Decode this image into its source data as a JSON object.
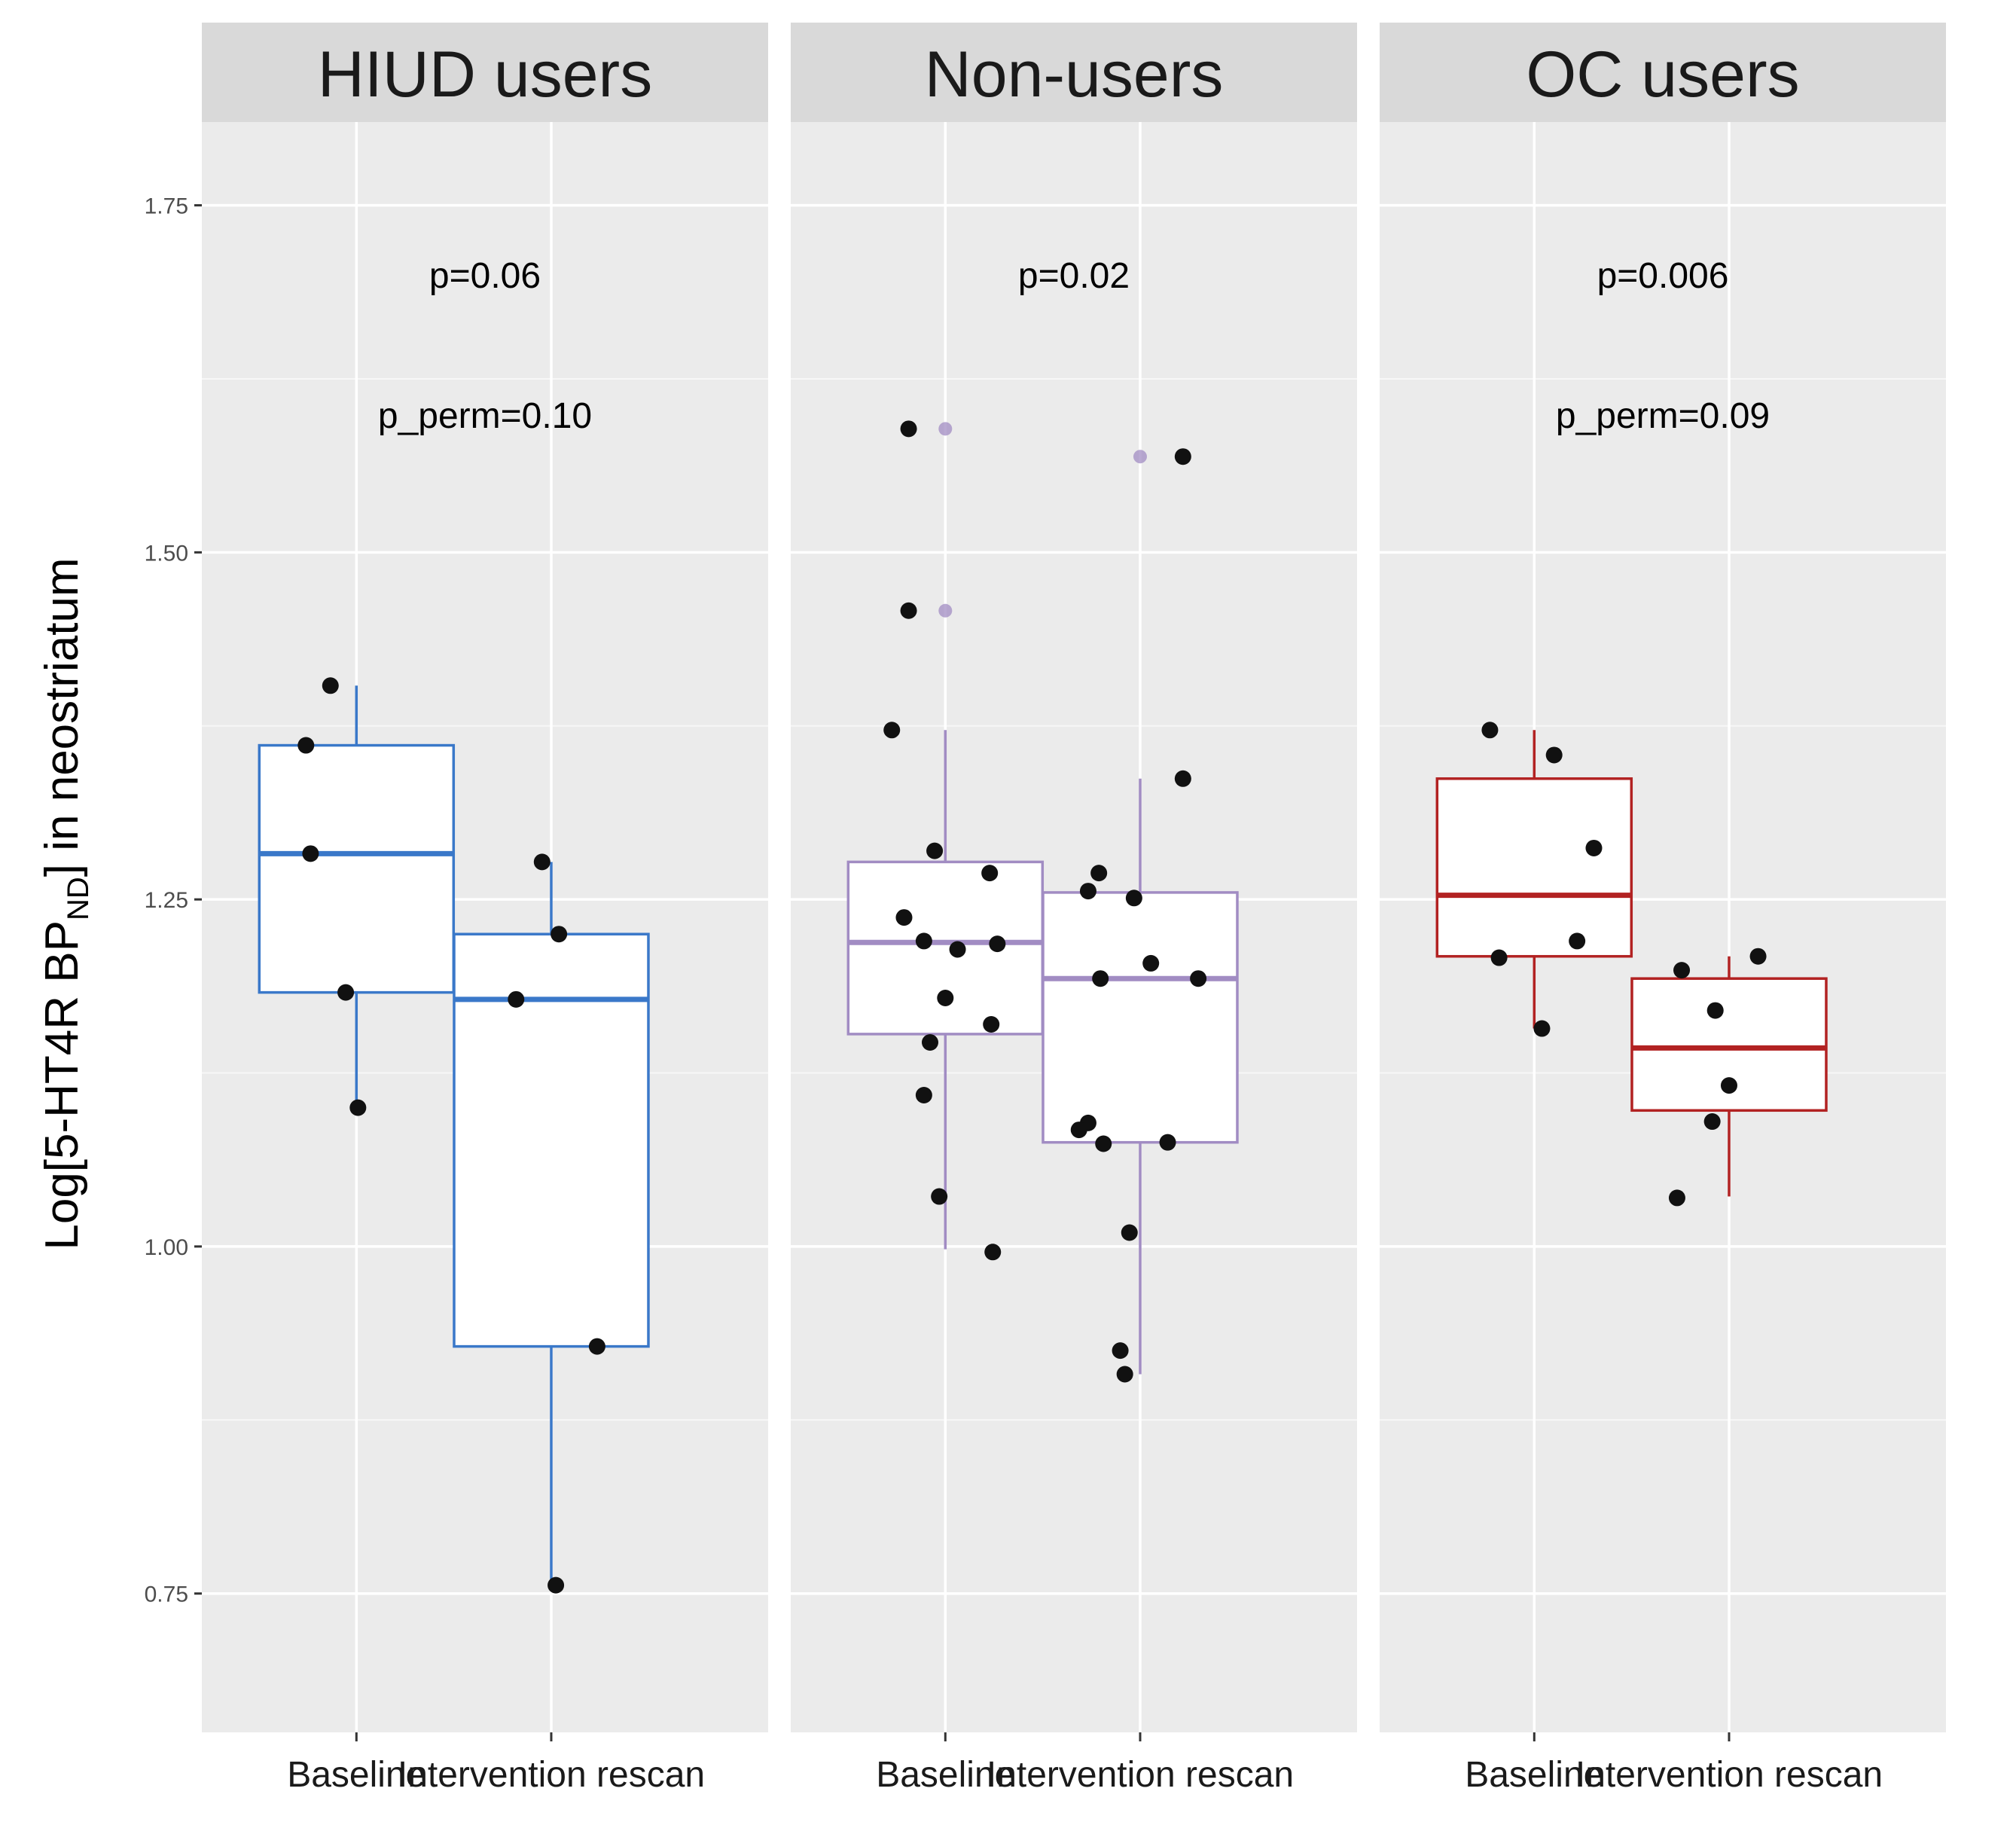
{
  "chart_data": {
    "type": "boxplot",
    "ylabel": {
      "prefix": "Log[5-HT4R BP",
      "subscript": "ND",
      "suffix": "] in neostriatum"
    },
    "ylim": [
      0.65,
      1.81
    ],
    "yticks": [
      0.75,
      1.0,
      1.25,
      1.5,
      1.75
    ],
    "ytick_labels": [
      "0.75",
      "1.00",
      "1.25",
      "1.50",
      "1.75"
    ],
    "categories": [
      "Baseline",
      "Intervention rescan"
    ],
    "panels": [
      {
        "name": "HIUD users",
        "color": "#3a78c9",
        "annotations": [
          "p=0.06",
          "p_perm=0.10"
        ],
        "boxes": [
          {
            "category": "Baseline",
            "whisker_low": 1.1,
            "q1": 1.183,
            "median": 1.283,
            "q3": 1.361,
            "whisker_high": 1.404,
            "outliers": []
          },
          {
            "category": "Intervention rescan",
            "whisker_low": 0.756,
            "q1": 0.928,
            "median": 1.178,
            "q3": 1.225,
            "whisker_high": 1.277,
            "outliers": []
          }
        ],
        "points": [
          {
            "category": "Baseline",
            "jitter": -0.33,
            "y": 1.361
          },
          {
            "category": "Baseline",
            "jitter": -0.3,
            "y": 1.283
          },
          {
            "category": "Baseline",
            "jitter": -0.17,
            "y": 1.404
          },
          {
            "category": "Baseline",
            "jitter": -0.07,
            "y": 1.183
          },
          {
            "category": "Baseline",
            "jitter": 0.01,
            "y": 1.1
          },
          {
            "category": "Intervention rescan",
            "jitter": -0.23,
            "y": 1.178
          },
          {
            "category": "Intervention rescan",
            "jitter": -0.06,
            "y": 1.277
          },
          {
            "category": "Intervention rescan",
            "jitter": 0.05,
            "y": 1.225
          },
          {
            "category": "Intervention rescan",
            "jitter": 0.03,
            "y": 0.756
          },
          {
            "category": "Intervention rescan",
            "jitter": 0.3,
            "y": 0.928
          }
        ]
      },
      {
        "name": "Non-users",
        "color": "#a18cc3",
        "annotations": [
          "p=0.02"
        ],
        "boxes": [
          {
            "category": "Baseline",
            "whisker_low": 0.998,
            "q1": 1.153,
            "median": 1.219,
            "q3": 1.277,
            "whisker_high": 1.372,
            "outliers": [
              1.589,
              1.458
            ]
          },
          {
            "category": "Intervention rescan",
            "whisker_low": 0.908,
            "q1": 1.075,
            "median": 1.193,
            "q3": 1.255,
            "whisker_high": 1.337,
            "outliers": [
              1.569
            ]
          }
        ],
        "points": [
          {
            "category": "Baseline",
            "jitter": -0.24,
            "y": 1.589
          },
          {
            "category": "Baseline",
            "jitter": -0.24,
            "y": 1.458
          },
          {
            "category": "Baseline",
            "jitter": -0.35,
            "y": 1.372
          },
          {
            "category": "Baseline",
            "jitter": -0.07,
            "y": 1.285
          },
          {
            "category": "Baseline",
            "jitter": -0.27,
            "y": 1.237
          },
          {
            "category": "Baseline",
            "jitter": -0.14,
            "y": 1.22
          },
          {
            "category": "Baseline",
            "jitter": 0.08,
            "y": 1.214
          },
          {
            "category": "Baseline",
            "jitter": 0.29,
            "y": 1.269
          },
          {
            "category": "Baseline",
            "jitter": 0.34,
            "y": 1.218
          },
          {
            "category": "Baseline",
            "jitter": 0.0,
            "y": 1.179
          },
          {
            "category": "Baseline",
            "jitter": 0.3,
            "y": 1.16
          },
          {
            "category": "Baseline",
            "jitter": -0.1,
            "y": 1.147
          },
          {
            "category": "Baseline",
            "jitter": -0.14,
            "y": 1.109
          },
          {
            "category": "Baseline",
            "jitter": -0.04,
            "y": 1.036
          },
          {
            "category": "Baseline",
            "jitter": 0.31,
            "y": 0.996
          },
          {
            "category": "Intervention rescan",
            "jitter": 0.28,
            "y": 1.569
          },
          {
            "category": "Intervention rescan",
            "jitter": 0.28,
            "y": 1.337
          },
          {
            "category": "Intervention rescan",
            "jitter": -0.27,
            "y": 1.269
          },
          {
            "category": "Intervention rescan",
            "jitter": -0.34,
            "y": 1.256
          },
          {
            "category": "Intervention rescan",
            "jitter": -0.04,
            "y": 1.251
          },
          {
            "category": "Intervention rescan",
            "jitter": 0.07,
            "y": 1.204
          },
          {
            "category": "Intervention rescan",
            "jitter": -0.26,
            "y": 1.193
          },
          {
            "category": "Intervention rescan",
            "jitter": 0.38,
            "y": 1.193
          },
          {
            "category": "Intervention rescan",
            "jitter": -0.34,
            "y": 1.089
          },
          {
            "category": "Intervention rescan",
            "jitter": -0.4,
            "y": 1.084
          },
          {
            "category": "Intervention rescan",
            "jitter": -0.24,
            "y": 1.074
          },
          {
            "category": "Intervention rescan",
            "jitter": 0.18,
            "y": 1.075
          },
          {
            "category": "Intervention rescan",
            "jitter": -0.07,
            "y": 1.01
          },
          {
            "category": "Intervention rescan",
            "jitter": -0.13,
            "y": 0.925
          },
          {
            "category": "Intervention rescan",
            "jitter": -0.1,
            "y": 0.908
          }
        ]
      },
      {
        "name": "OC users",
        "color": "#b22222",
        "annotations": [
          "p=0.006",
          "p_perm=0.09"
        ],
        "boxes": [
          {
            "category": "Baseline",
            "whisker_low": 1.157,
            "q1": 1.209,
            "median": 1.253,
            "q3": 1.337,
            "whisker_high": 1.372,
            "outliers": []
          },
          {
            "category": "Intervention rescan",
            "whisker_low": 1.036,
            "q1": 1.098,
            "median": 1.143,
            "q3": 1.193,
            "whisker_high": 1.209,
            "outliers": []
          }
        ],
        "points": [
          {
            "category": "Baseline",
            "jitter": -0.29,
            "y": 1.372
          },
          {
            "category": "Baseline",
            "jitter": 0.13,
            "y": 1.354
          },
          {
            "category": "Baseline",
            "jitter": 0.39,
            "y": 1.287
          },
          {
            "category": "Baseline",
            "jitter": 0.28,
            "y": 1.22
          },
          {
            "category": "Baseline",
            "jitter": -0.23,
            "y": 1.208
          },
          {
            "category": "Baseline",
            "jitter": 0.05,
            "y": 1.157
          },
          {
            "category": "Intervention rescan",
            "jitter": -0.31,
            "y": 1.199
          },
          {
            "category": "Intervention rescan",
            "jitter": 0.19,
            "y": 1.209
          },
          {
            "category": "Intervention rescan",
            "jitter": -0.09,
            "y": 1.17
          },
          {
            "category": "Intervention rescan",
            "jitter": 0.0,
            "y": 1.116
          },
          {
            "category": "Intervention rescan",
            "jitter": -0.11,
            "y": 1.09
          },
          {
            "category": "Intervention rescan",
            "jitter": -0.34,
            "y": 1.035
          }
        ]
      }
    ]
  }
}
